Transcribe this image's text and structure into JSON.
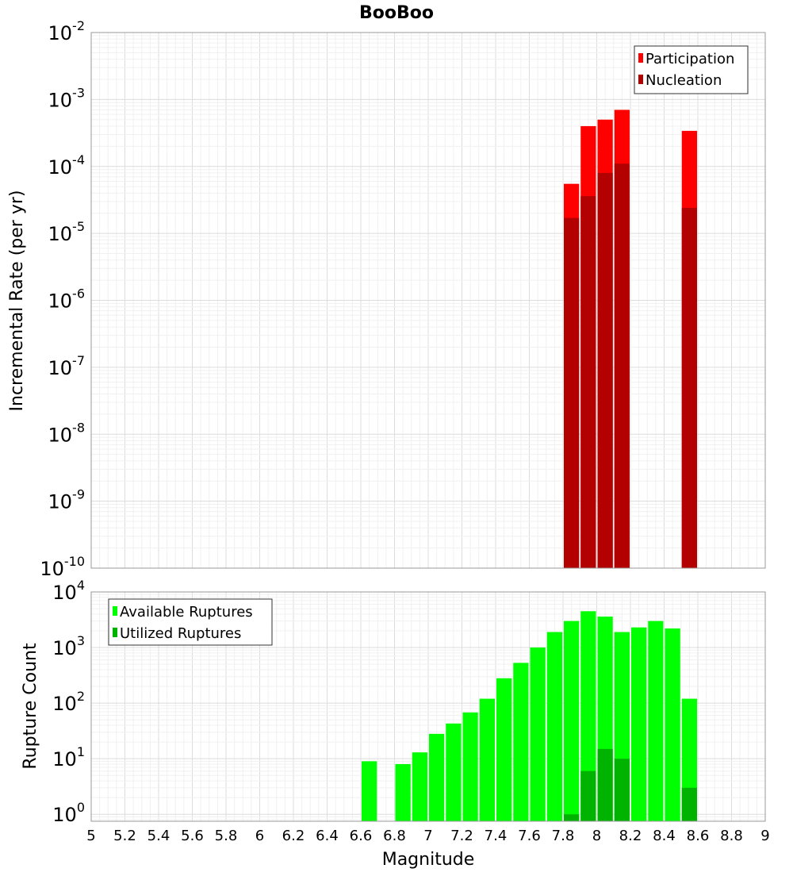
{
  "chart_data": [
    {
      "type": "bar",
      "title": "BooBoo",
      "xlabel": "Magnitude",
      "ylabel": "Incremental Rate (per yr)",
      "yscale": "log",
      "ylim": [
        1e-10,
        0.01
      ],
      "xlim": [
        5,
        9
      ],
      "bar_width": 0.1,
      "legend_position": "top-right",
      "y_ticks": [
        {
          "base": "10",
          "exp": "-2",
          "value": 0.01
        },
        {
          "base": "10",
          "exp": "-3",
          "value": 0.001
        },
        {
          "base": "10",
          "exp": "-4",
          "value": 0.0001
        },
        {
          "base": "10",
          "exp": "-5",
          "value": 1e-05
        },
        {
          "base": "10",
          "exp": "-6",
          "value": 1e-06
        },
        {
          "base": "10",
          "exp": "-7",
          "value": 1e-07
        },
        {
          "base": "10",
          "exp": "-8",
          "value": 1e-08
        },
        {
          "base": "10",
          "exp": "-9",
          "value": 1e-09
        },
        {
          "base": "10",
          "exp": "-10",
          "value": 1e-10
        }
      ],
      "series": [
        {
          "name": "Participation",
          "color": "#ff0000",
          "x": [
            7.85,
            7.95,
            8.05,
            8.15,
            8.55
          ],
          "values": [
            5.5e-05,
            0.0004,
            0.0005,
            0.0007,
            0.00034
          ]
        },
        {
          "name": "Nucleation",
          "color": "#b30000",
          "x": [
            7.85,
            7.95,
            8.05,
            8.15,
            8.55
          ],
          "values": [
            1.7e-05,
            3.6e-05,
            8e-05,
            0.00011,
            2.4e-05
          ]
        }
      ]
    },
    {
      "type": "bar",
      "title": "",
      "xlabel": "Magnitude",
      "ylabel": "Rupture Count",
      "yscale": "log",
      "ylim": [
        0.75,
        10000
      ],
      "xlim": [
        5,
        9
      ],
      "bar_width": 0.1,
      "legend_position": "top-left",
      "x_ticks": [
        "5",
        "5.2",
        "5.4",
        "5.6",
        "5.8",
        "6",
        "6.2",
        "6.4",
        "6.6",
        "6.8",
        "7",
        "7.2",
        "7.4",
        "7.6",
        "7.8",
        "8",
        "8.2",
        "8.4",
        "8.6",
        "8.8",
        "9"
      ],
      "y_ticks": [
        {
          "base": "10",
          "exp": "4",
          "value": 10000
        },
        {
          "base": "10",
          "exp": "3",
          "value": 1000
        },
        {
          "base": "10",
          "exp": "2",
          "value": 100
        },
        {
          "base": "10",
          "exp": "1",
          "value": 10
        },
        {
          "base": "10",
          "exp": "0",
          "value": 1
        }
      ],
      "series": [
        {
          "name": "Available Ruptures",
          "color": "#00ff00",
          "x": [
            6.65,
            6.85,
            6.95,
            7.05,
            7.15,
            7.25,
            7.35,
            7.45,
            7.55,
            7.65,
            7.75,
            7.85,
            7.95,
            8.05,
            8.15,
            8.25,
            8.35,
            8.45,
            8.55
          ],
          "values": [
            9,
            8,
            13,
            28,
            43,
            68,
            120,
            280,
            530,
            1000,
            1900,
            3000,
            4500,
            3600,
            1900,
            2300,
            3000,
            2200,
            120
          ]
        },
        {
          "name": "Utilized Ruptures",
          "color": "#00b300",
          "x": [
            7.85,
            7.95,
            8.05,
            8.15,
            8.55
          ],
          "values": [
            1,
            6,
            15,
            10,
            3
          ]
        }
      ]
    }
  ]
}
